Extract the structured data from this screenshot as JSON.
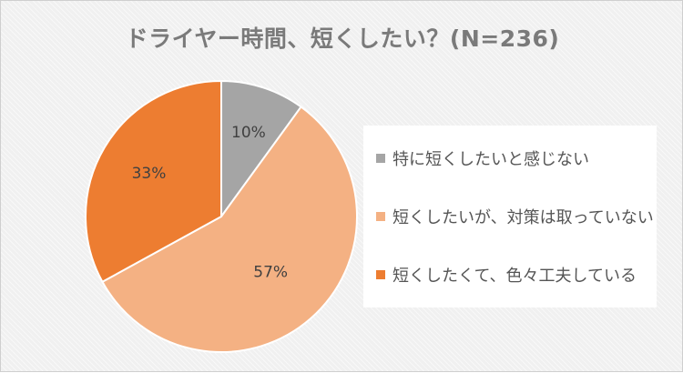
{
  "chart_data": {
    "type": "pie",
    "title": "ドライヤー時間、短くしたい？(N=236)",
    "start_angle_deg": 0,
    "direction": "clockwise",
    "slices": [
      {
        "label": "特に短くしたいと感じない",
        "value": 10,
        "data_label": "10%",
        "color": "#a5a5a5"
      },
      {
        "label": "短くしたいが、対策は取っていない",
        "value": 57,
        "data_label": "57%",
        "color": "#f4b183"
      },
      {
        "label": "短くしたくて、色々工夫している",
        "value": 33,
        "data_label": "33%",
        "color": "#ed7d31"
      }
    ],
    "legend_position": "right"
  }
}
